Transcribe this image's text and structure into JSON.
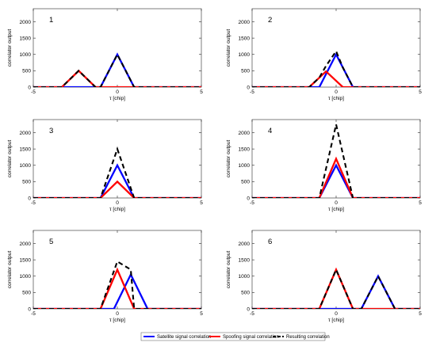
{
  "chart_data": {
    "type": "line",
    "colors": {
      "satellite": "#0000ff",
      "spoofing": "#ff0000",
      "resulting": "#000000"
    },
    "legend": {
      "placement": "bottom-center",
      "entries": [
        {
          "key": "satellite",
          "label": "Satellite signal correlation"
        },
        {
          "key": "spoofing",
          "label": "Spoofing signal correlation"
        },
        {
          "key": "resulting",
          "label": "Resulting correlation"
        }
      ]
    },
    "panels": [
      {
        "label": "1",
        "xlabel": "τ [chip]",
        "ylabel": "correlator output",
        "xlim": [
          -5,
          5
        ],
        "ylim": [
          0,
          2400
        ],
        "xticks": [
          -5,
          0,
          5
        ],
        "yticks": [
          0,
          500,
          1000,
          1500,
          2000
        ],
        "series": [
          {
            "key": "satellite",
            "x": [
              -5,
              -1,
              0,
              1,
              5
            ],
            "y": [
              0,
              0,
              1000,
              0,
              0
            ]
          },
          {
            "key": "spoofing",
            "x": [
              -5,
              -3.3,
              -2.3,
              -1.3,
              5
            ],
            "y": [
              0,
              0,
              500,
              0,
              0
            ]
          },
          {
            "key": "resulting",
            "x": [
              -5,
              -3.3,
              -2.3,
              -1.3,
              -1,
              0,
              1,
              5
            ],
            "y": [
              0,
              0,
              500,
              0,
              0,
              1000,
              0,
              0
            ]
          }
        ]
      },
      {
        "label": "2",
        "xlabel": "τ [chip]",
        "ylabel": "correlator output",
        "xlim": [
          -5,
          5
        ],
        "ylim": [
          0,
          2400
        ],
        "xticks": [
          -5,
          0,
          5
        ],
        "yticks": [
          0,
          500,
          1000,
          1500,
          2000
        ],
        "series": [
          {
            "key": "satellite",
            "x": [
              -5,
              -1,
              0,
              1,
              5
            ],
            "y": [
              0,
              0,
              1000,
              0,
              0
            ]
          },
          {
            "key": "spoofing",
            "x": [
              -5,
              -1.6,
              -0.6,
              0.4,
              5
            ],
            "y": [
              0,
              0,
              480,
              0,
              0
            ]
          },
          {
            "key": "resulting",
            "x": [
              -5,
              -1.6,
              -1,
              -0.6,
              0,
              0.4,
              1,
              5
            ],
            "y": [
              0,
              0,
              290,
              650,
              1100,
              600,
              0,
              0
            ]
          }
        ]
      },
      {
        "label": "3",
        "xlabel": "τ [chip]",
        "ylabel": "correlator output",
        "xlim": [
          -5,
          5
        ],
        "ylim": [
          0,
          2400
        ],
        "xticks": [
          -5,
          0,
          5
        ],
        "yticks": [
          0,
          500,
          1000,
          1500,
          2000
        ],
        "series": [
          {
            "key": "satellite",
            "x": [
              -5,
              -1,
              0,
              1,
              5
            ],
            "y": [
              0,
              0,
              1000,
              0,
              0
            ]
          },
          {
            "key": "spoofing",
            "x": [
              -5,
              -1,
              0,
              1,
              5
            ],
            "y": [
              0,
              0,
              500,
              0,
              0
            ]
          },
          {
            "key": "resulting",
            "x": [
              -5,
              -1,
              0,
              1,
              5
            ],
            "y": [
              0,
              0,
              1500,
              0,
              0
            ]
          }
        ]
      },
      {
        "label": "4",
        "xlabel": "τ [chip]",
        "ylabel": "correlator output",
        "xlim": [
          -5,
          5
        ],
        "ylim": [
          0,
          2400
        ],
        "xticks": [
          -5,
          0,
          5
        ],
        "yticks": [
          0,
          500,
          1000,
          1500,
          2000
        ],
        "series": [
          {
            "key": "satellite",
            "x": [
              -5,
              -1,
              0,
              1,
              5
            ],
            "y": [
              0,
              0,
              1000,
              0,
              0
            ]
          },
          {
            "key": "spoofing",
            "x": [
              -5,
              -1,
              0,
              1,
              5
            ],
            "y": [
              0,
              0,
              1200,
              0,
              0
            ]
          },
          {
            "key": "resulting",
            "x": [
              -5,
              -1,
              0,
              1,
              5
            ],
            "y": [
              0,
              0,
              2250,
              0,
              0
            ]
          }
        ]
      },
      {
        "label": "5",
        "xlabel": "τ [chip]",
        "ylabel": "correlator output",
        "xlim": [
          -5,
          5
        ],
        "ylim": [
          0,
          2400
        ],
        "xticks": [
          -5,
          0,
          5
        ],
        "yticks": [
          0,
          500,
          1000,
          1500,
          2000
        ],
        "series": [
          {
            "key": "satellite",
            "x": [
              -5,
              -0.2,
              0.8,
              1.8,
              5
            ],
            "y": [
              0,
              0,
              1050,
              0,
              0
            ]
          },
          {
            "key": "spoofing",
            "x": [
              -5,
              -1,
              0,
              1,
              5
            ],
            "y": [
              0,
              0,
              1200,
              0,
              0
            ]
          },
          {
            "key": "resulting",
            "x": [
              -5,
              -1,
              0,
              0.8,
              1,
              1.8,
              5
            ],
            "y": [
              0,
              0,
              1450,
              1200,
              0,
              0,
              0
            ]
          }
        ]
      },
      {
        "label": "6",
        "xlabel": "τ [chip]",
        "ylabel": "correlator output",
        "xlim": [
          -5,
          5
        ],
        "ylim": [
          0,
          2400
        ],
        "xticks": [
          -5,
          0,
          5
        ],
        "yticks": [
          0,
          500,
          1000,
          1500,
          2000
        ],
        "series": [
          {
            "key": "satellite",
            "x": [
              -5,
              1.5,
              2.5,
              3.5,
              5
            ],
            "y": [
              0,
              0,
              1000,
              0,
              0
            ]
          },
          {
            "key": "spoofing",
            "x": [
              -5,
              -1,
              0,
              1,
              5
            ],
            "y": [
              0,
              0,
              1200,
              0,
              0
            ]
          },
          {
            "key": "resulting",
            "x": [
              -5,
              -1,
              0,
              1,
              1.5,
              2.5,
              3.5,
              5
            ],
            "y": [
              0,
              0,
              1200,
              0,
              0,
              1000,
              0,
              0
            ]
          }
        ]
      }
    ]
  }
}
